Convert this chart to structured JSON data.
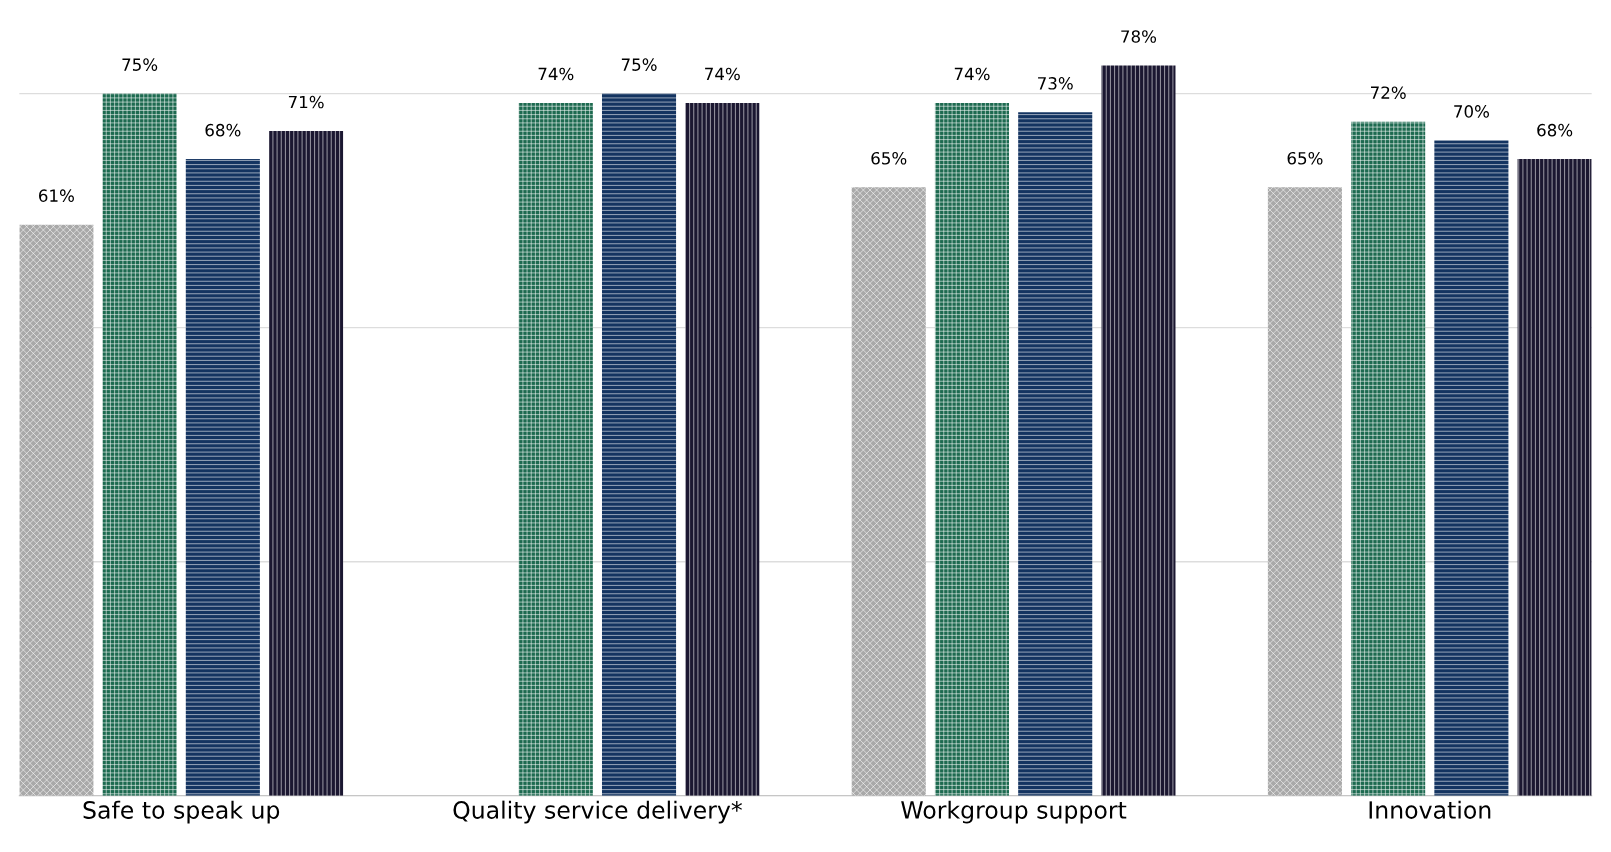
{
  "chart_data": {
    "type": "bar",
    "categories": [
      "Safe to speak up",
      "Quality service delivery*",
      "Workgroup support",
      "Innovation"
    ],
    "series": [
      {
        "color": "#a9a9a9",
        "values": [
          61,
          null,
          65,
          65
        ],
        "value_labels": [
          "61%",
          null,
          "65%",
          "65%"
        ]
      },
      {
        "color": "#1d6a50",
        "values": [
          75,
          74,
          74,
          72
        ],
        "value_labels": [
          "75%",
          "74%",
          "74%",
          "72%"
        ]
      },
      {
        "color": "#143461",
        "values": [
          68,
          75,
          73,
          70
        ],
        "value_labels": [
          "68%",
          "75%",
          "73%",
          "70%"
        ]
      },
      {
        "color": "#1b1731",
        "values": [
          71,
          74,
          78,
          68
        ],
        "value_labels": [
          "71%",
          "74%",
          "78%",
          "68%"
        ]
      }
    ],
    "grid": "y",
    "tick_labels": "x"
  }
}
